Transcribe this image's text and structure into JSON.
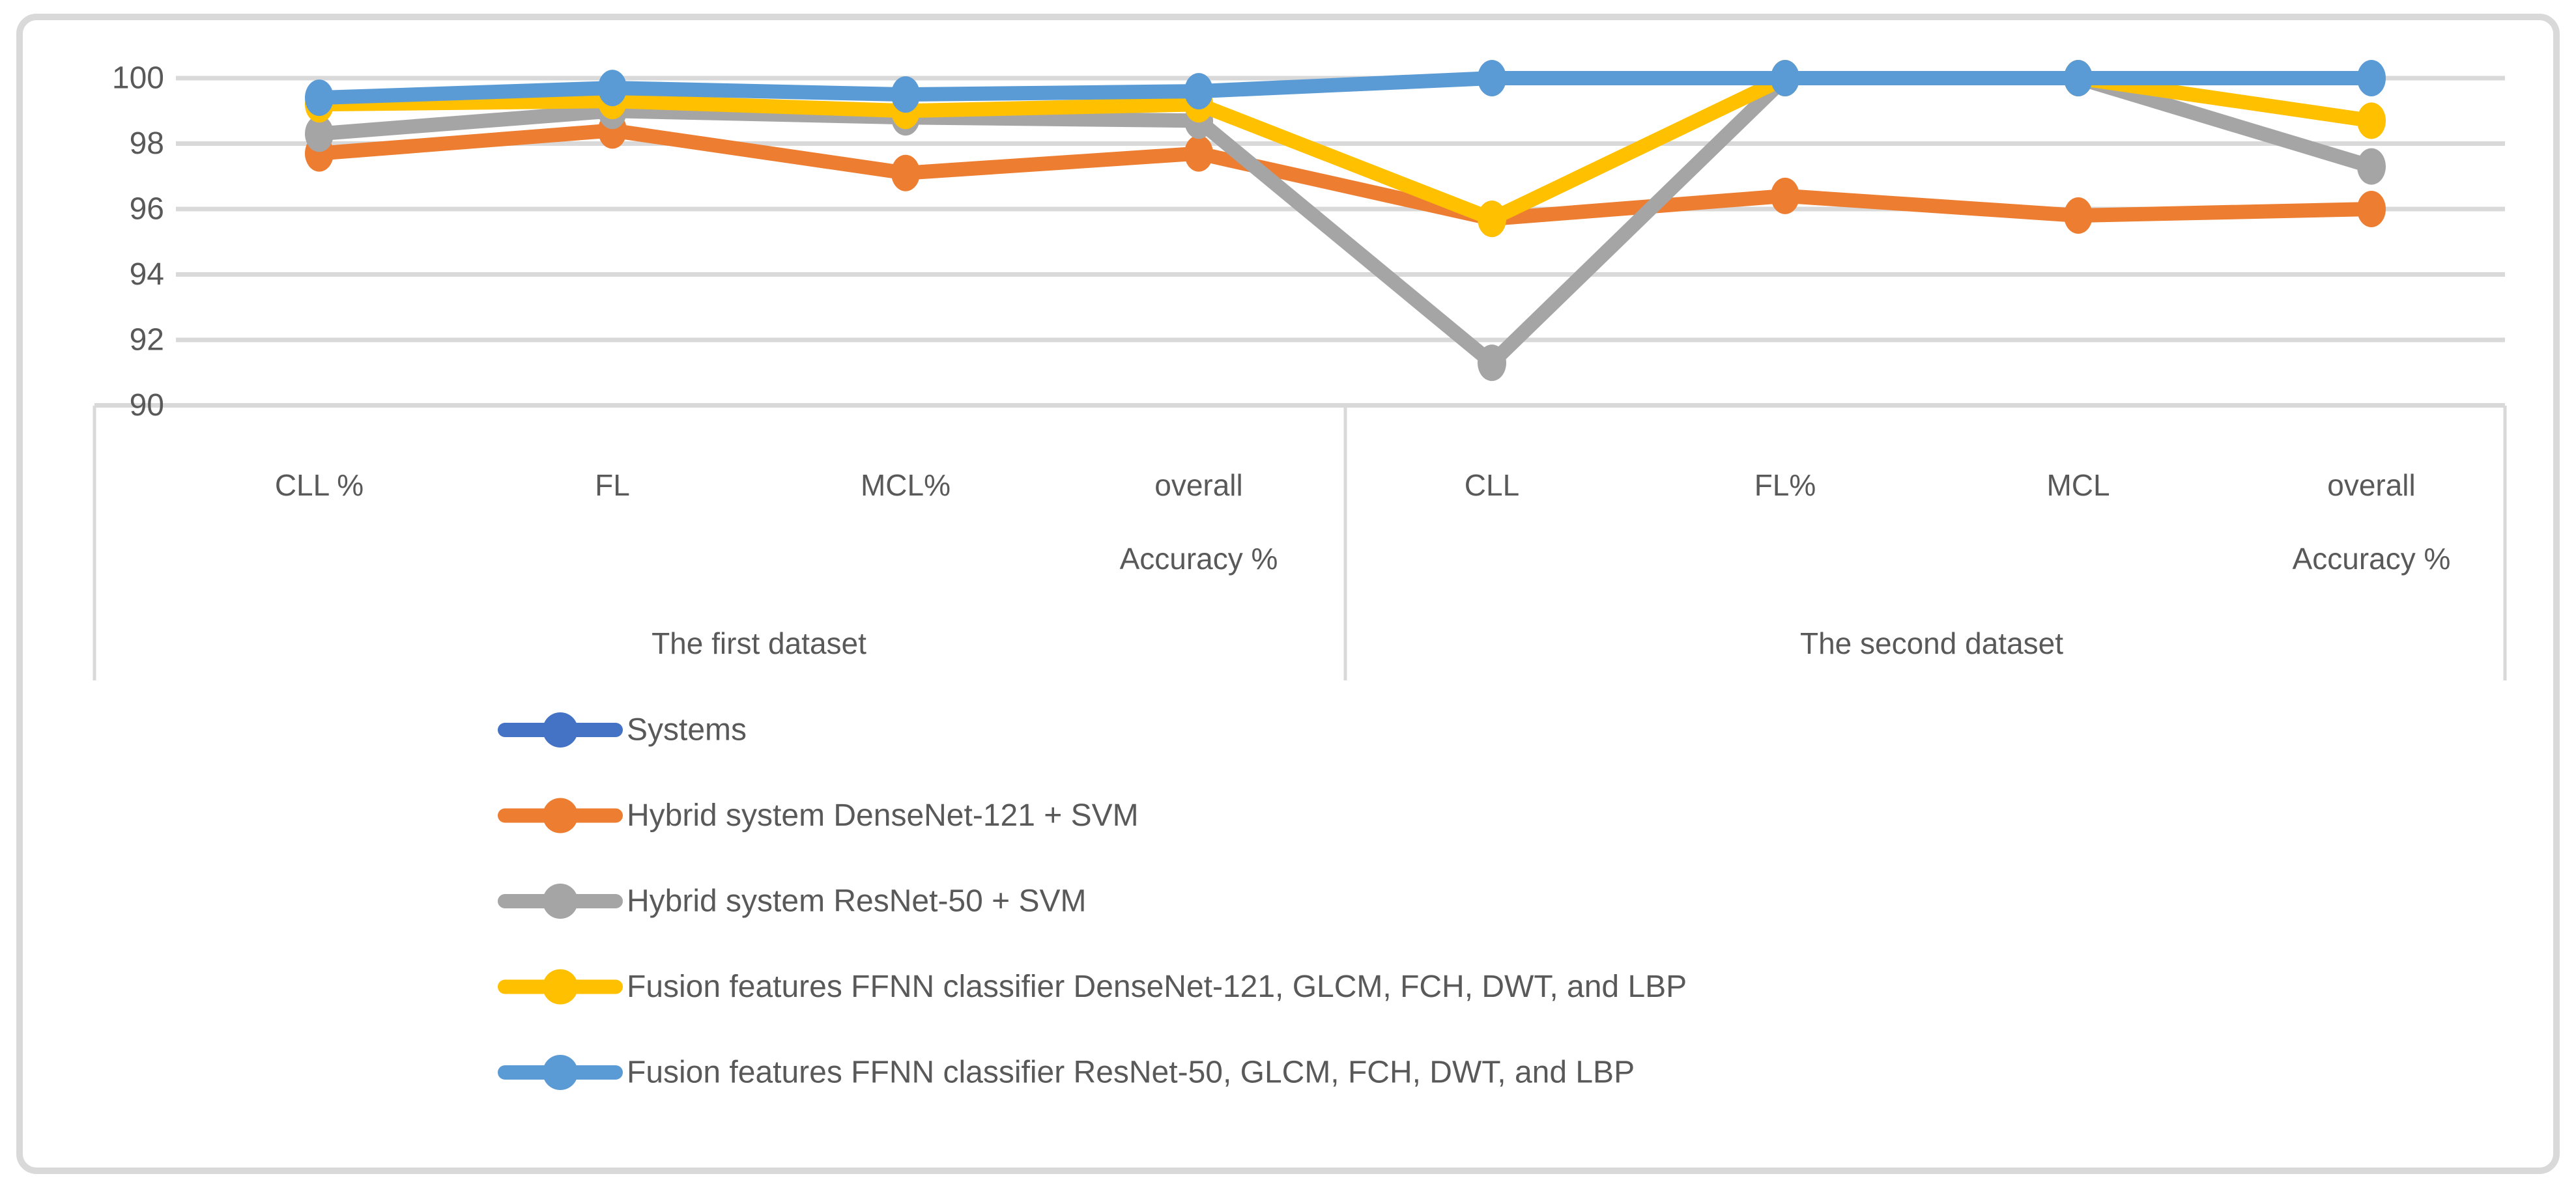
{
  "chart_data": {
    "type": "line",
    "title": "",
    "xlabel": "",
    "ylabel": "",
    "ylim": [
      90,
      100
    ],
    "grid": true,
    "legend_position": "bottom-left",
    "yticks": [
      "100",
      "98",
      "96",
      "94",
      "92",
      "90"
    ],
    "ytick_values": [
      100,
      98,
      96,
      94,
      92,
      90
    ],
    "categories": [
      [
        "CLL %"
      ],
      [
        "FL"
      ],
      [
        "MCL%"
      ],
      [
        "overall",
        "Accuracy %"
      ],
      [
        "CLL"
      ],
      [
        "FL%"
      ],
      [
        "MCL"
      ],
      [
        "overall",
        "Accuracy %"
      ]
    ],
    "category_groups": [
      {
        "label": "The first dataset",
        "start": 0,
        "span": 4
      },
      {
        "label": "The second dataset",
        "start": 4,
        "span": 4
      }
    ],
    "series": [
      {
        "name": "Systems",
        "color": "#4472C4",
        "values": [
          null,
          null,
          null,
          null,
          null,
          null,
          null,
          null
        ]
      },
      {
        "name": "Hybrid system DenseNet-121 + SVM",
        "color": "#ED7D31",
        "values": [
          97.7,
          98.4,
          97.1,
          97.7,
          95.7,
          96.4,
          95.8,
          96.0
        ]
      },
      {
        "name": "Hybrid system ResNet-50 + SVM",
        "color": "#A5A5A5",
        "values": [
          98.3,
          99.0,
          98.8,
          98.7,
          91.3,
          100,
          100,
          97.3
        ]
      },
      {
        "name": "Fusion features FFNN classifier DenseNet-121, GLCM, FCH, DWT, and LBP",
        "color": "#FFC000",
        "values": [
          99.2,
          99.3,
          99.0,
          99.2,
          95.7,
          100,
          100,
          98.7
        ]
      },
      {
        "name": "Fusion features FFNN classifier ResNet-50, GLCM, FCH, DWT, and LBP",
        "color": "#5B9BD5",
        "values": [
          99.4,
          99.7,
          99.5,
          99.6,
          100,
          100,
          100,
          100
        ]
      }
    ],
    "colors": {
      "gridline": "#D9D9D9",
      "axis_line": "#D9D9D9",
      "figure_border": "#D9D9D9",
      "axis_text": "#595959",
      "background": "#FFFFFF"
    }
  }
}
